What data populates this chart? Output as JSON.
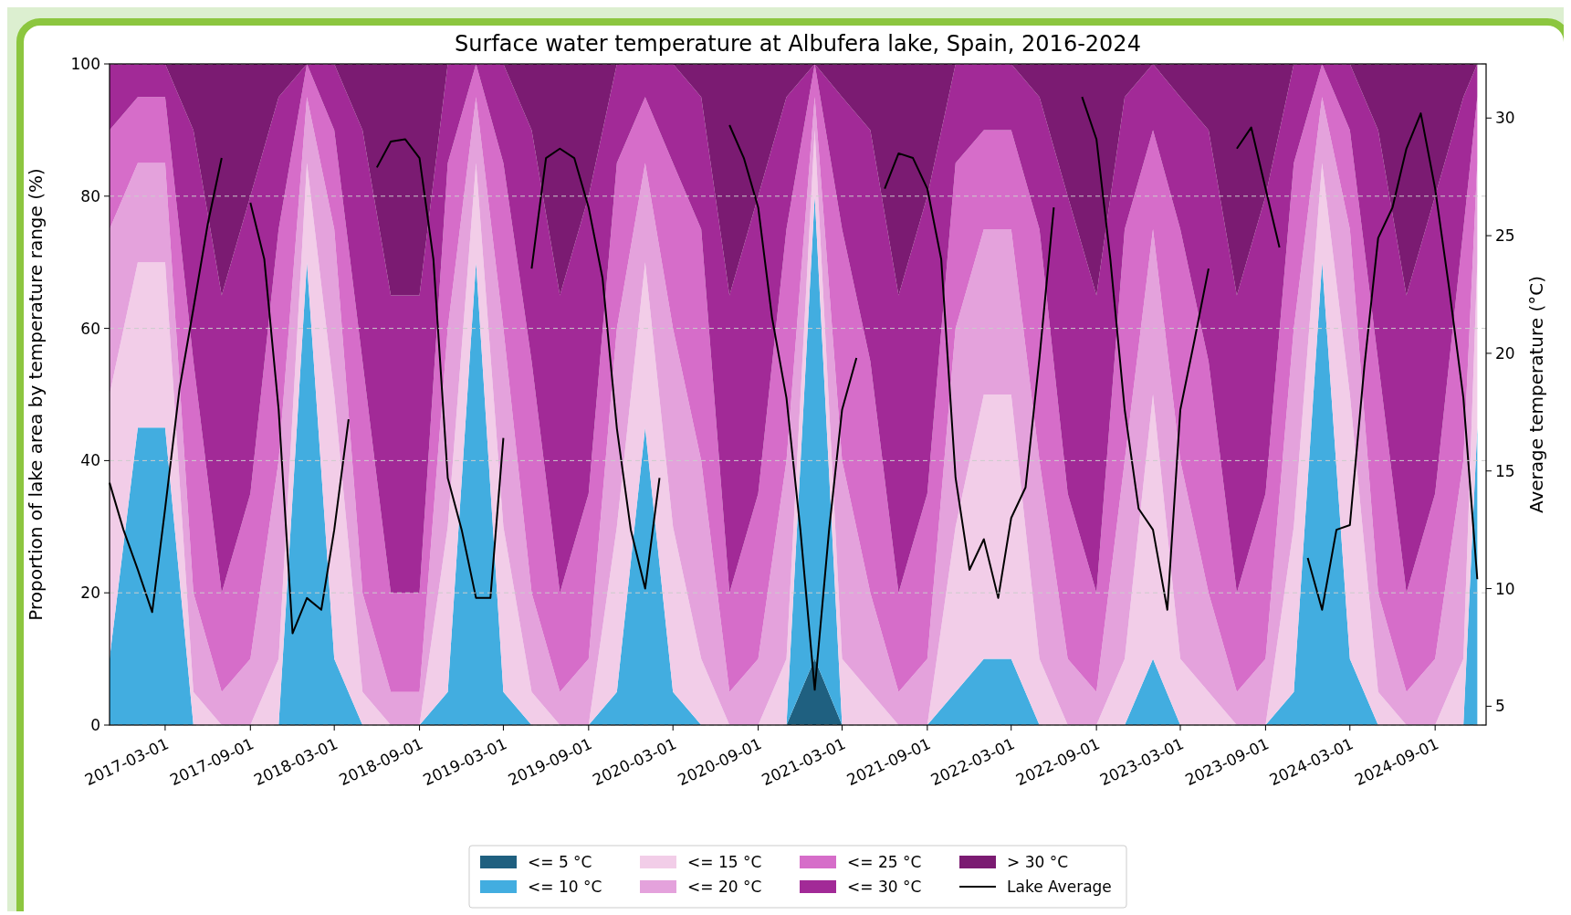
{
  "chart_data": {
    "type": "area",
    "title": "Surface water temperature at Albufera lake, Spain, 2016-2024",
    "ylabel": "Proportion of lake area by temperature range (%)",
    "y2label": "Average temperature (°C)",
    "stacked": true,
    "grid": "y",
    "legend": "bottom",
    "ylim": [
      0,
      100
    ],
    "yticks": [
      0,
      20,
      40,
      60,
      80,
      100
    ],
    "y2lim": [
      4.2,
      32.3
    ],
    "y2ticks": [
      5,
      10,
      15,
      20,
      25,
      30
    ],
    "xlim": [
      "2016-11-01",
      "2024-12-20"
    ],
    "xticks": [
      "2017-03-01",
      "2017-09-01",
      "2018-03-01",
      "2018-09-01",
      "2019-03-01",
      "2019-09-01",
      "2020-03-01",
      "2020-09-01",
      "2021-03-01",
      "2021-09-01",
      "2022-03-01",
      "2022-09-01",
      "2023-03-01",
      "2023-09-01",
      "2024-03-01",
      "2024-09-01"
    ],
    "x": [
      "2016-11",
      "2017-01",
      "2017-03",
      "2017-05",
      "2017-07",
      "2017-09",
      "2017-11",
      "2018-01",
      "2018-03",
      "2018-05",
      "2018-07",
      "2018-09",
      "2018-11",
      "2019-01",
      "2019-03",
      "2019-05",
      "2019-07",
      "2019-09",
      "2019-11",
      "2020-01",
      "2020-03",
      "2020-05",
      "2020-07",
      "2020-09",
      "2020-11",
      "2021-01",
      "2021-03",
      "2021-05",
      "2021-07",
      "2021-09",
      "2021-11",
      "2022-01",
      "2022-03",
      "2022-05",
      "2022-07",
      "2022-09",
      "2022-11",
      "2023-01",
      "2023-03",
      "2023-05",
      "2023-07",
      "2023-09",
      "2023-11",
      "2024-01",
      "2024-03",
      "2024-05",
      "2024-07",
      "2024-09",
      "2024-11",
      "2024-12"
    ],
    "series": [
      {
        "name": "<= 5 °C",
        "type": "area",
        "color": "#1f6080",
        "values": [
          0,
          0,
          0,
          0,
          0,
          0,
          0,
          0,
          0,
          0,
          0,
          0,
          0,
          0,
          0,
          0,
          0,
          0,
          0,
          0,
          0,
          0,
          0,
          0,
          0,
          10,
          0,
          0,
          0,
          0,
          0,
          0,
          0,
          0,
          0,
          0,
          0,
          0,
          0,
          0,
          0,
          0,
          0,
          0,
          0,
          0,
          0,
          0,
          0,
          0
        ]
      },
      {
        "name": "<= 10 °C",
        "type": "area",
        "color": "#42ade0",
        "values": [
          10,
          45,
          45,
          0,
          0,
          0,
          0,
          70,
          10,
          0,
          0,
          0,
          5,
          70,
          5,
          0,
          0,
          0,
          5,
          45,
          5,
          0,
          0,
          0,
          0,
          70,
          0,
          0,
          0,
          0,
          5,
          10,
          10,
          0,
          0,
          0,
          0,
          10,
          0,
          0,
          0,
          0,
          5,
          70,
          10,
          0,
          0,
          0,
          0,
          45
        ]
      },
      {
        "name": "<= 15 °C",
        "type": "area",
        "color": "#f2cde8",
        "values": [
          40,
          25,
          25,
          5,
          0,
          0,
          10,
          15,
          40,
          5,
          0,
          0,
          25,
          15,
          25,
          5,
          0,
          0,
          25,
          25,
          25,
          10,
          0,
          0,
          10,
          10,
          10,
          5,
          0,
          0,
          25,
          40,
          40,
          10,
          0,
          0,
          10,
          40,
          10,
          5,
          0,
          0,
          25,
          15,
          40,
          5,
          0,
          0,
          10,
          25
        ]
      },
      {
        "name": "<= 20 °C",
        "type": "area",
        "color": "#e4a2dc",
        "values": [
          25,
          15,
          15,
          15,
          5,
          10,
          30,
          10,
          25,
          15,
          5,
          5,
          30,
          10,
          30,
          15,
          5,
          10,
          30,
          15,
          30,
          30,
          5,
          10,
          30,
          5,
          30,
          15,
          5,
          10,
          30,
          25,
          25,
          30,
          10,
          5,
          30,
          25,
          30,
          15,
          5,
          10,
          30,
          10,
          25,
          15,
          5,
          10,
          30,
          15
        ]
      },
      {
        "name": "<= 25 °C",
        "type": "area",
        "color": "#d66dc9",
        "values": [
          15,
          10,
          10,
          35,
          15,
          25,
          35,
          5,
          15,
          35,
          15,
          15,
          25,
          5,
          25,
          35,
          15,
          25,
          25,
          10,
          25,
          35,
          15,
          25,
          35,
          5,
          35,
          35,
          15,
          25,
          25,
          15,
          15,
          35,
          25,
          15,
          35,
          15,
          35,
          35,
          15,
          25,
          25,
          5,
          15,
          35,
          15,
          25,
          35,
          10
        ]
      },
      {
        "name": "<= 30 °C",
        "type": "area",
        "color": "#a22a97",
        "values": [
          10,
          5,
          5,
          35,
          45,
          45,
          20,
          0,
          10,
          35,
          45,
          45,
          15,
          0,
          15,
          35,
          45,
          45,
          15,
          5,
          15,
          20,
          45,
          45,
          20,
          0,
          20,
          35,
          45,
          45,
          15,
          10,
          10,
          20,
          45,
          45,
          20,
          10,
          20,
          35,
          45,
          45,
          15,
          0,
          10,
          35,
          45,
          45,
          20,
          5
        ]
      },
      {
        "name": "> 30 °C",
        "type": "area",
        "color": "#7b1b72",
        "values": [
          0,
          0,
          0,
          10,
          35,
          20,
          5,
          0,
          0,
          10,
          35,
          35,
          0,
          0,
          0,
          10,
          35,
          20,
          0,
          0,
          0,
          5,
          35,
          20,
          5,
          0,
          5,
          10,
          35,
          20,
          0,
          0,
          0,
          5,
          20,
          35,
          5,
          0,
          5,
          10,
          35,
          20,
          0,
          0,
          0,
          10,
          35,
          20,
          5,
          0
        ]
      },
      {
        "name": "Lake Average",
        "type": "line",
        "axis": "y2",
        "color": "#000000",
        "x": [
          "2016-11",
          "2016-12",
          "2017-01",
          "2017-02",
          "2017-03",
          "2017-04",
          "2017-05",
          "2017-06",
          "2017-07",
          "2017-08",
          "2017-09",
          "2017-10",
          "2017-11",
          "2017-12",
          "2018-01",
          "2018-02",
          "2018-03",
          "2018-04",
          "2018-05",
          "2018-06",
          "2018-07",
          "2018-08",
          "2018-09",
          "2018-10",
          "2018-11",
          "2018-12",
          "2019-01",
          "2019-02",
          "2019-03",
          "2019-04",
          "2019-05",
          "2019-06",
          "2019-07",
          "2019-08",
          "2019-09",
          "2019-10",
          "2019-11",
          "2019-12",
          "2020-01",
          "2020-02",
          "2020-03",
          "2020-04",
          "2020-05",
          "2020-06",
          "2020-07",
          "2020-08",
          "2020-09",
          "2020-10",
          "2020-11",
          "2020-12",
          "2021-01",
          "2021-02",
          "2021-03",
          "2021-04",
          "2021-05",
          "2021-06",
          "2021-07",
          "2021-08",
          "2021-09",
          "2021-10",
          "2021-11",
          "2021-12",
          "2022-01",
          "2022-02",
          "2022-03",
          "2022-04",
          "2022-05",
          "2022-06",
          "2022-07",
          "2022-08",
          "2022-09",
          "2022-10",
          "2022-11",
          "2022-12",
          "2023-01",
          "2023-02",
          "2023-03",
          "2023-04",
          "2023-05",
          "2023-06",
          "2023-07",
          "2023-08",
          "2023-09",
          "2023-10",
          "2023-11",
          "2023-12",
          "2024-01",
          "2024-02",
          "2024-03",
          "2024-04",
          "2024-05",
          "2024-06",
          "2024-07",
          "2024-08",
          "2024-09",
          "2024-10",
          "2024-11",
          "2024-12"
        ],
        "values": [
          14.5,
          12.5,
          10.8,
          9.0,
          13.4,
          18.5,
          21.9,
          25.5,
          28.3,
          null,
          26.4,
          24.0,
          17.6,
          8.1,
          9.6,
          9.1,
          12.5,
          17.2,
          null,
          27.9,
          29.0,
          29.1,
          28.3,
          24.0,
          14.7,
          12.5,
          9.6,
          9.6,
          16.4,
          null,
          23.6,
          28.3,
          28.7,
          28.3,
          26.2,
          23.2,
          16.8,
          12.5,
          10.0,
          14.7,
          null,
          null,
          null,
          null,
          29.7,
          28.3,
          26.2,
          21.5,
          18.1,
          12.5,
          5.7,
          12.5,
          17.6,
          19.8,
          null,
          27.0,
          28.5,
          28.3,
          27.0,
          24.0,
          14.7,
          10.8,
          12.1,
          9.6,
          13.0,
          14.3,
          19.8,
          26.2,
          null,
          30.9,
          29.1,
          24.0,
          17.6,
          13.4,
          12.5,
          9.1,
          17.6,
          20.6,
          23.6,
          null,
          28.7,
          29.6,
          27.0,
          24.5,
          null,
          11.3,
          9.1,
          12.5,
          12.7,
          19.4,
          24.9,
          26.2,
          28.7,
          30.2,
          27.0,
          22.8,
          18.1,
          10.4
        ]
      }
    ]
  }
}
